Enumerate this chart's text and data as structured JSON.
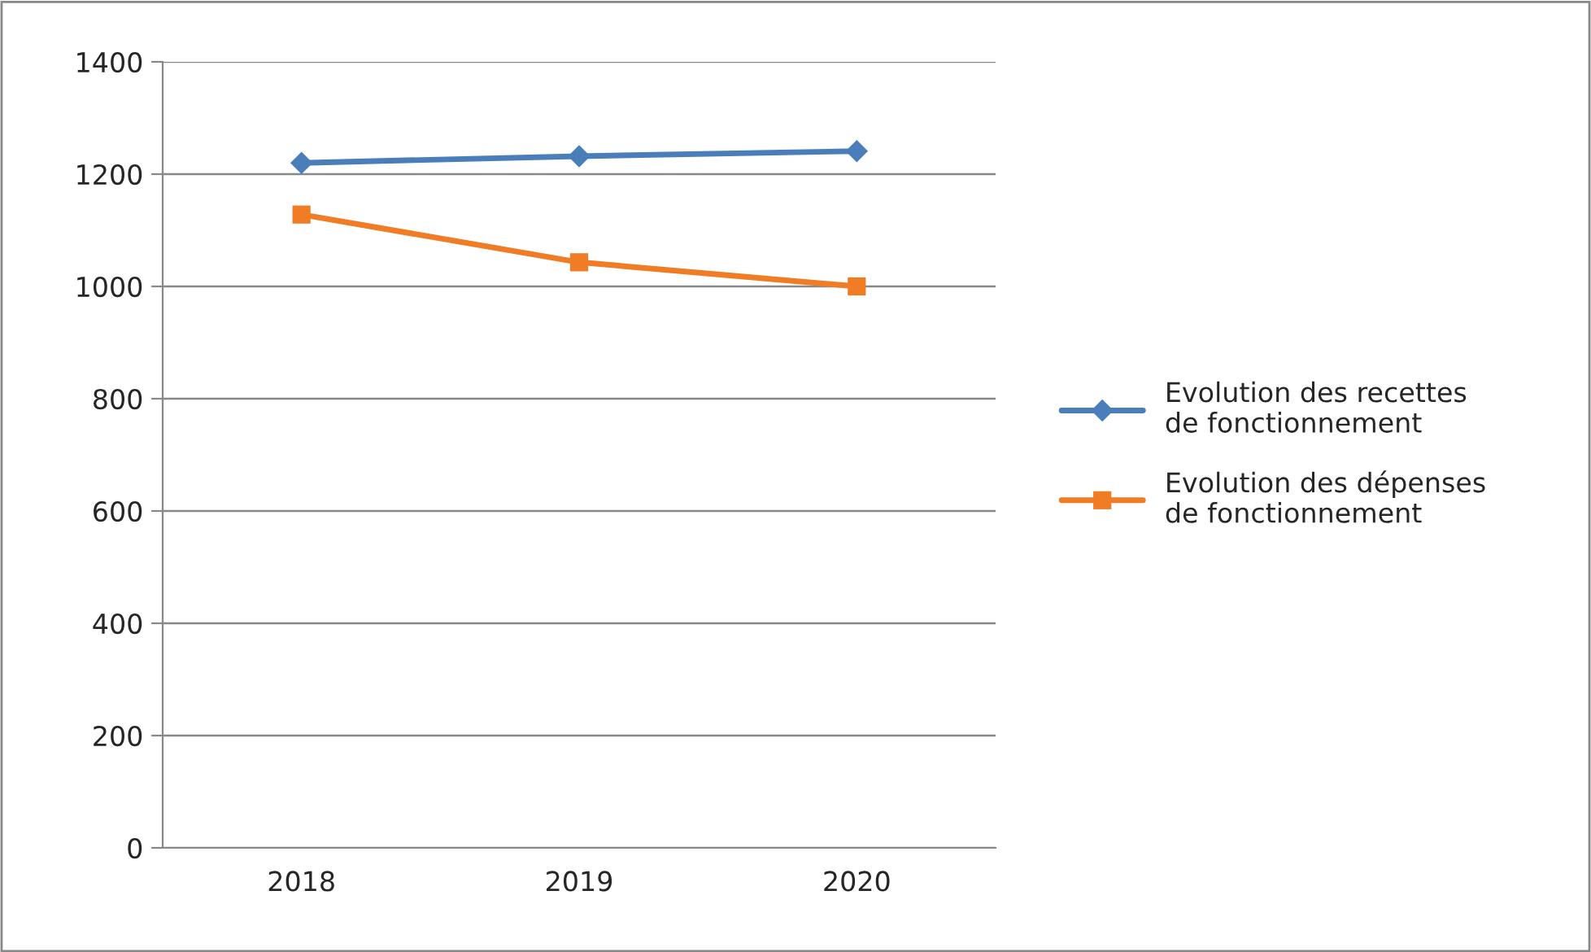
{
  "chart_data": {
    "type": "line",
    "categories": [
      "2018",
      "2019",
      "2020"
    ],
    "series": [
      {
        "name": "Evolution des recettes de fonctionnement",
        "color": "#4a7ebb",
        "marker": "diamond",
        "values": [
          1220,
          1232,
          1241
        ]
      },
      {
        "name": "Evolution des dépenses de fonctionnement",
        "color": "#f07d26",
        "marker": "square",
        "values": [
          1128,
          1043,
          1000
        ]
      }
    ],
    "ylim": [
      0,
      1400
    ],
    "yticks": [
      0,
      200,
      400,
      600,
      800,
      1000,
      1200,
      1400
    ],
    "grid": "y",
    "legend": "right",
    "line_style": "solid"
  }
}
